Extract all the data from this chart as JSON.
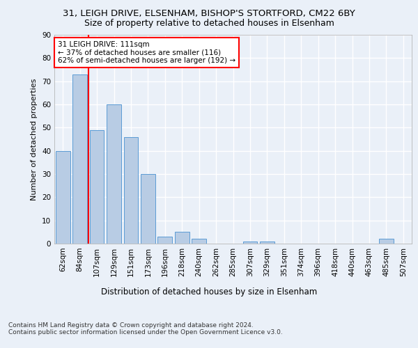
{
  "title1": "31, LEIGH DRIVE, ELSENHAM, BISHOP'S STORTFORD, CM22 6BY",
  "title2": "Size of property relative to detached houses in Elsenham",
  "xlabel": "Distribution of detached houses by size in Elsenham",
  "ylabel": "Number of detached properties",
  "categories": [
    "62sqm",
    "84sqm",
    "107sqm",
    "129sqm",
    "151sqm",
    "173sqm",
    "196sqm",
    "218sqm",
    "240sqm",
    "262sqm",
    "285sqm",
    "307sqm",
    "329sqm",
    "351sqm",
    "374sqm",
    "396sqm",
    "418sqm",
    "440sqm",
    "463sqm",
    "485sqm",
    "507sqm"
  ],
  "values": [
    40,
    73,
    49,
    60,
    46,
    30,
    3,
    5,
    2,
    0,
    0,
    1,
    1,
    0,
    0,
    0,
    0,
    0,
    0,
    2,
    0
  ],
  "bar_color": "#b8cce4",
  "bar_edge_color": "#5b9bd5",
  "vline_x": 1.5,
  "vline_color": "red",
  "annotation_text": "31 LEIGH DRIVE: 111sqm\n← 37% of detached houses are smaller (116)\n62% of semi-detached houses are larger (192) →",
  "annotation_box_color": "white",
  "annotation_box_edge": "red",
  "ylim": [
    0,
    90
  ],
  "yticks": [
    0,
    10,
    20,
    30,
    40,
    50,
    60,
    70,
    80,
    90
  ],
  "footer": "Contains HM Land Registry data © Crown copyright and database right 2024.\nContains public sector information licensed under the Open Government Licence v3.0.",
  "bg_color": "#eaf0f8",
  "plot_bg_color": "#eaf0f8",
  "grid_color": "#ffffff",
  "title1_fontsize": 9.5,
  "title2_fontsize": 9,
  "xlabel_fontsize": 8.5,
  "ylabel_fontsize": 8,
  "tick_fontsize": 7.5,
  "annot_fontsize": 7.5,
  "footer_fontsize": 6.5
}
